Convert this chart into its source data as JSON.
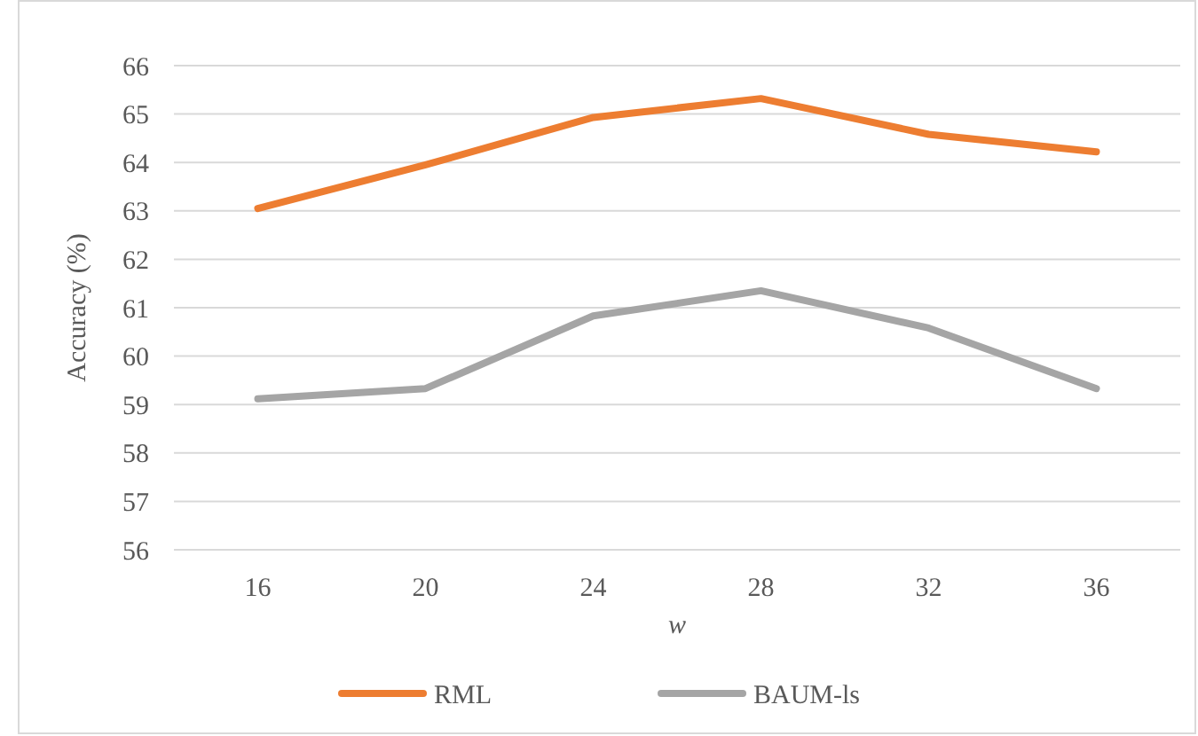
{
  "chart_data": {
    "type": "line",
    "xlabel": "w",
    "ylabel": "Accuracy (%)",
    "categories": [
      "16",
      "20",
      "24",
      "28",
      "32",
      "36"
    ],
    "series": [
      {
        "name": "RML",
        "color": "#ed7d31",
        "values": [
          63.05,
          63.95,
          64.93,
          65.32,
          64.58,
          64.22
        ]
      },
      {
        "name": "BAUM-ls",
        "color": "#a5a5a5",
        "values": [
          59.12,
          59.33,
          60.83,
          61.35,
          60.58,
          59.33
        ]
      }
    ],
    "ylim": [
      56,
      66
    ],
    "yticks": [
      56,
      57,
      58,
      59,
      60,
      61,
      62,
      63,
      64,
      65,
      66
    ],
    "grid": "y",
    "legend": "bottom",
    "marker": "none",
    "line_style": "solid"
  }
}
